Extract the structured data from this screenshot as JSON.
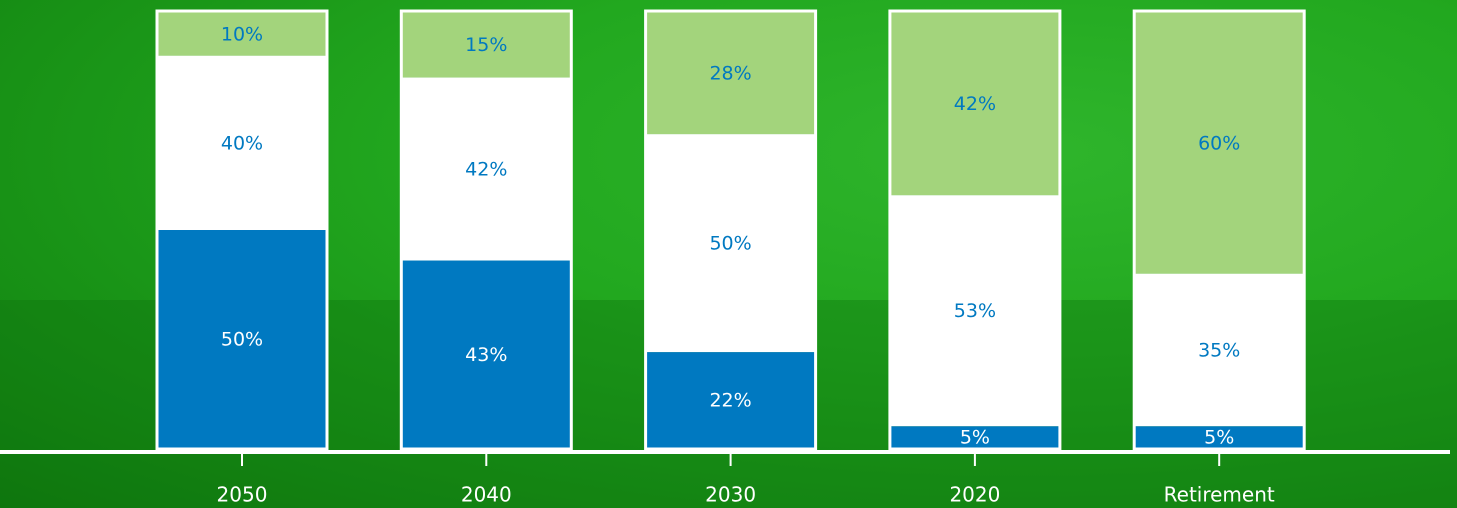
{
  "chart_data": {
    "type": "stacked-bar",
    "categories": [
      "2050",
      "2040",
      "2030",
      "2020",
      "Retirement"
    ],
    "ylim": [
      0,
      100
    ],
    "series": [
      {
        "color": "#0079c1",
        "values": [
          50,
          43,
          22,
          5,
          5
        ],
        "value_labels": [
          "50%",
          "43%",
          "22%",
          "5%",
          "5%"
        ],
        "label_color": "#ffffff"
      },
      {
        "color": "#ffffff",
        "values": [
          40,
          42,
          50,
          53,
          35
        ],
        "value_labels": [
          "40%",
          "42%",
          "50%",
          "53%",
          "35%"
        ],
        "label_color": "#0079c1"
      },
      {
        "color": "#a3d47c",
        "values": [
          10,
          15,
          28,
          42,
          60
        ],
        "value_labels": [
          "10%",
          "15%",
          "28%",
          "42%",
          "60%"
        ],
        "label_color": "#0079c1"
      }
    ]
  }
}
